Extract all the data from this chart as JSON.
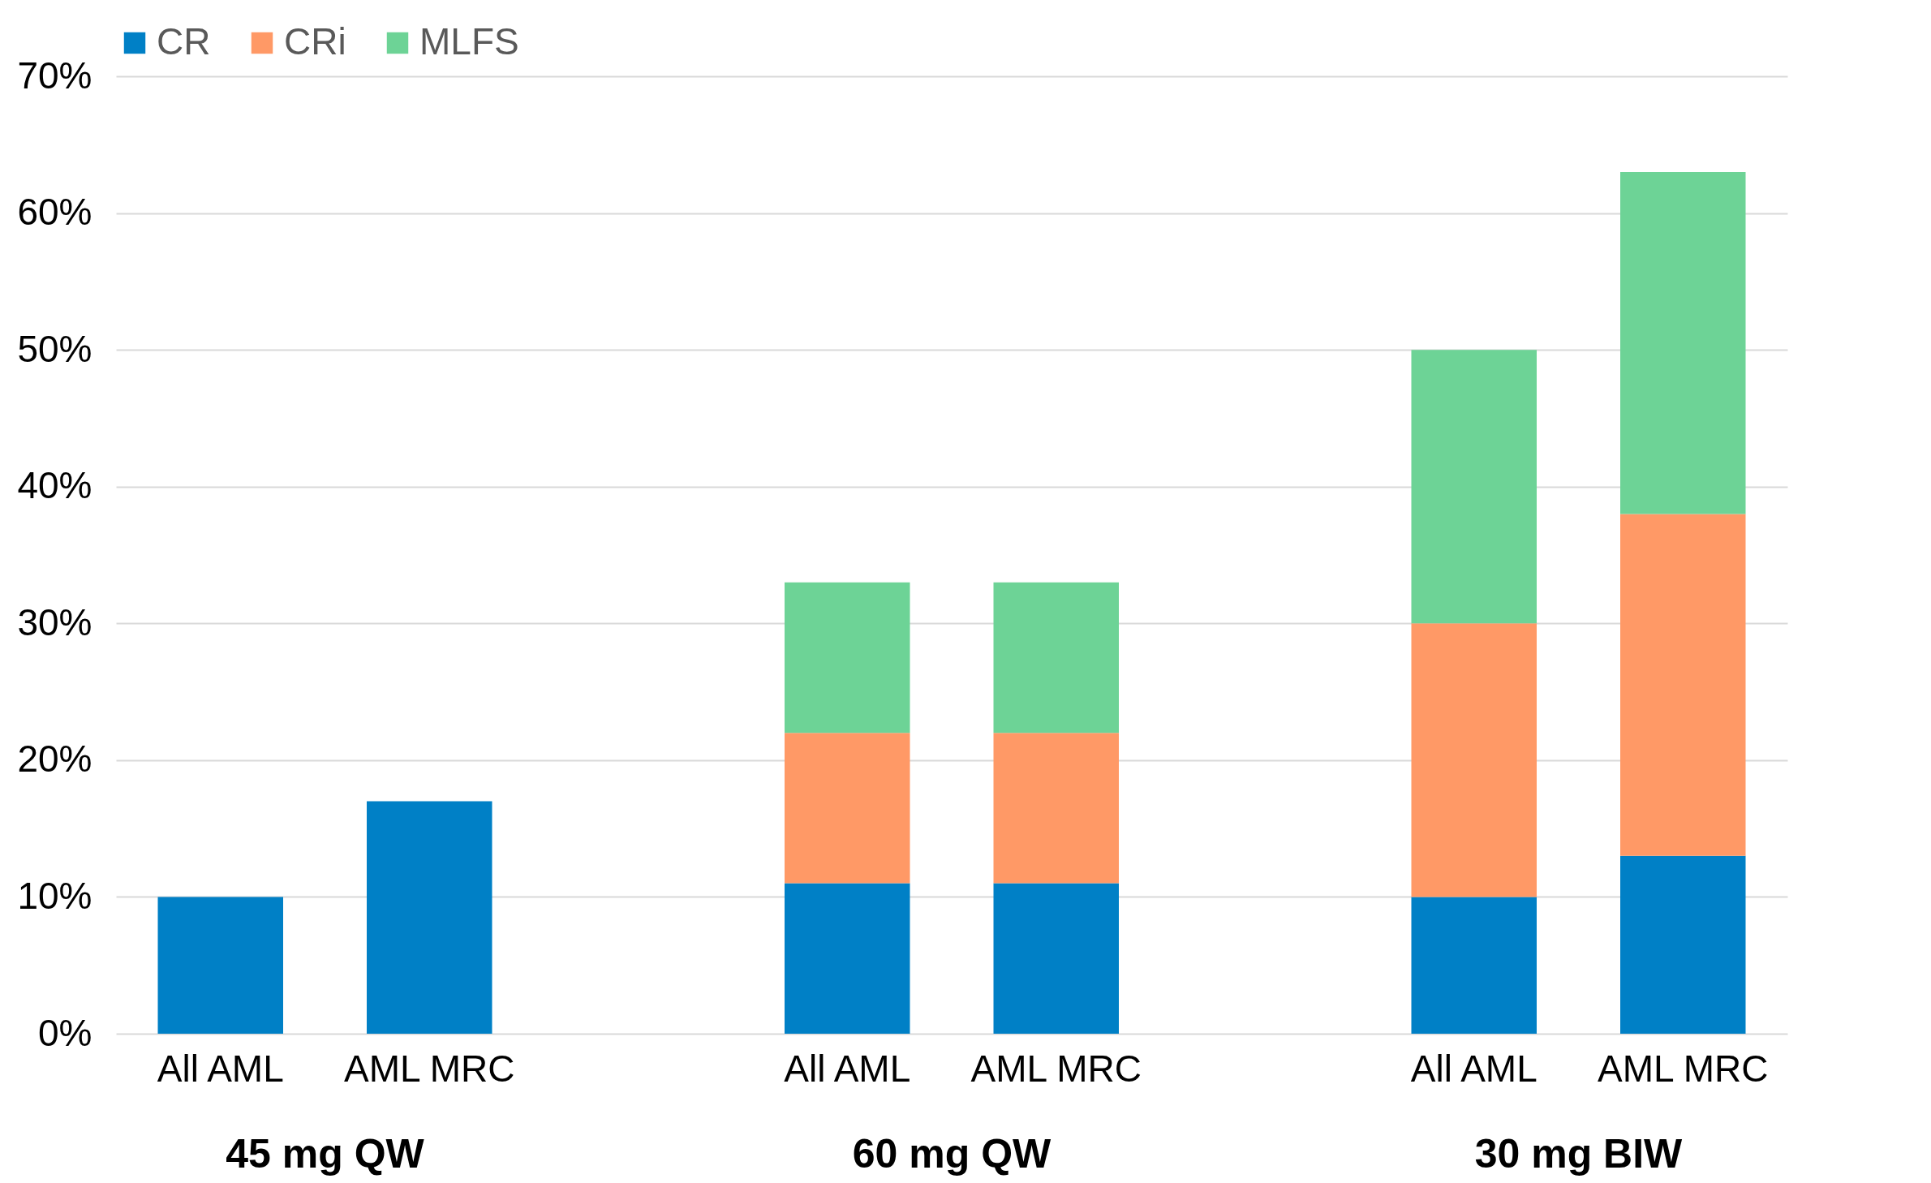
{
  "chart_data": {
    "type": "bar",
    "stacked": true,
    "categories": [
      "All AML",
      "AML MRC",
      null,
      "All AML",
      "AML MRC",
      null,
      "All AML",
      "AML MRC"
    ],
    "series": [
      {
        "name": "CR",
        "color": "#0080c6",
        "values": [
          10,
          17,
          null,
          11,
          11,
          null,
          10,
          13
        ]
      },
      {
        "name": "CRi",
        "color": "#ff9966",
        "values": [
          null,
          null,
          null,
          11,
          11,
          null,
          20,
          25
        ]
      },
      {
        "name": "MLFS",
        "color": "#6dd396",
        "values": [
          null,
          null,
          null,
          11,
          11,
          null,
          20,
          25
        ]
      }
    ],
    "annotations": [
      "45 mg QW",
      "60 mg QW",
      "30 mg BIW"
    ],
    "ylim": [
      0,
      70
    ],
    "yticks": [
      {
        "value": 0,
        "label": "0%"
      },
      {
        "value": 10,
        "label": "10%"
      },
      {
        "value": 20,
        "label": "20%"
      },
      {
        "value": 30,
        "label": "30%"
      },
      {
        "value": 40,
        "label": "40%"
      },
      {
        "value": 50,
        "label": "50%"
      },
      {
        "value": 60,
        "label": "60%"
      },
      {
        "value": 70,
        "label": "70%"
      }
    ],
    "grid": "y",
    "legend": "top"
  }
}
